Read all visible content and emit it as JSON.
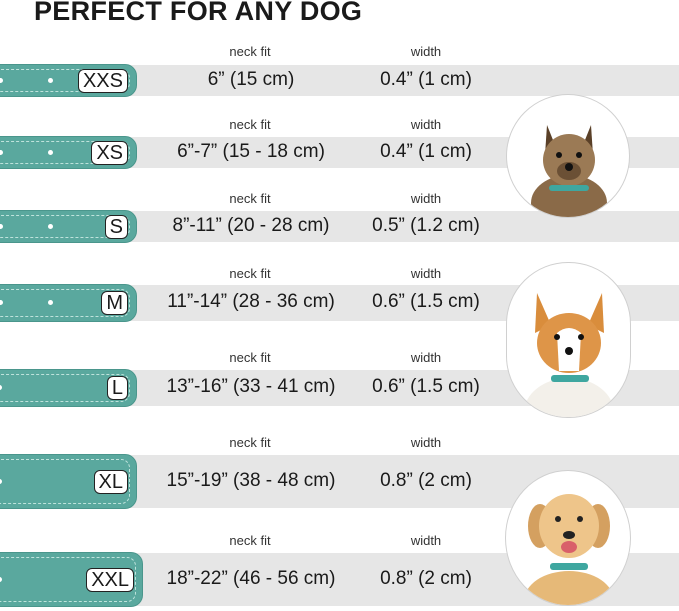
{
  "title": "PERFECT FOR ANY DOG",
  "accent_color": "#5aa89e",
  "sizes": [
    {
      "size": "XXS",
      "neck_label": "neck fit",
      "neck": "6” (15 cm)",
      "width_label": "width",
      "width": "0.4” (1 cm)"
    },
    {
      "size": "XS",
      "neck_label": "neck fit",
      "neck": "6”-7” (15 - 18 cm)",
      "width_label": "width",
      "width": "0.4” (1 cm)"
    },
    {
      "size": "S",
      "neck_label": "neck fit",
      "neck": "8”-11” (20 - 28 cm)",
      "width_label": "width",
      "width": "0.5” (1.2 cm)"
    },
    {
      "size": "M",
      "neck_label": "neck fit",
      "neck": "11”-14” (28 - 36 cm)",
      "width_label": "width",
      "width": "0.6” (1.5 cm)"
    },
    {
      "size": "L",
      "neck_label": "neck fit",
      "neck": "13”-16” (33 - 41 cm)",
      "width_label": "width",
      "width": "0.6” (1.5 cm)"
    },
    {
      "size": "XL",
      "neck_label": "neck fit",
      "neck": "15”-19” (38 - 48 cm)",
      "width_label": "width",
      "width": "0.8” (2 cm)"
    },
    {
      "size": "XXL",
      "neck_label": "neck fit",
      "neck": "18”-22” (46 - 56 cm)",
      "width_label": "width",
      "width": "0.8” (2 cm)"
    }
  ],
  "dog_images": [
    "small-terrier-dog",
    "corgi-dog",
    "labrador-dog"
  ]
}
